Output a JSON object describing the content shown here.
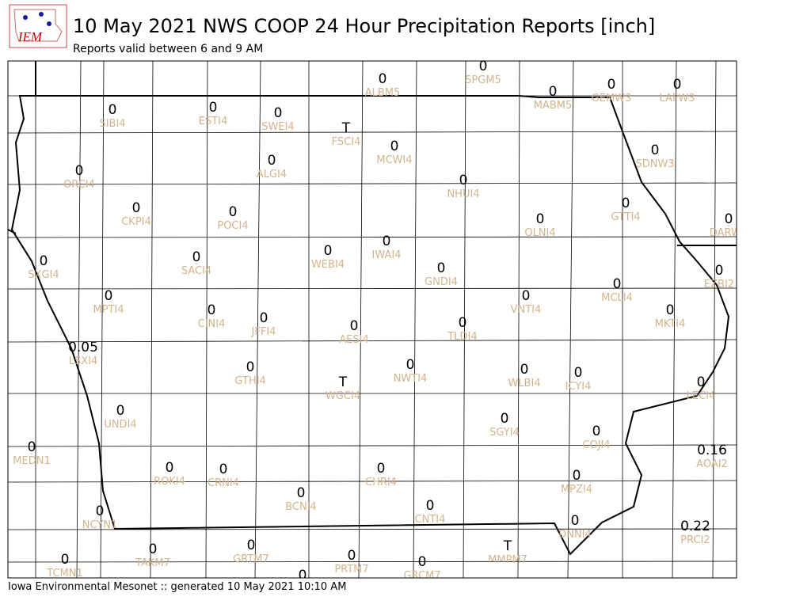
{
  "logo": "IEM",
  "title": "10 May 2021 NWS COOP 24 Hour Precipitation Reports [inch]",
  "subtitle": "Reports valid between 6 and 9 AM",
  "footer": "Iowa Environmental Mesonet :: generated 10 May 2021 10:10 AM",
  "stations": [
    {
      "id": "ALBM5",
      "value": "0"
    },
    {
      "id": "SPGM5",
      "value": "0"
    },
    {
      "id": "MABM5",
      "value": "0"
    },
    {
      "id": "GEMW3",
      "value": "0"
    },
    {
      "id": "LAFW3",
      "value": "0"
    },
    {
      "id": "SIBI4",
      "value": "0"
    },
    {
      "id": "ESTI4",
      "value": "0"
    },
    {
      "id": "SWEI4",
      "value": "0"
    },
    {
      "id": "FSCI4",
      "value": "T"
    },
    {
      "id": "MCWI4",
      "value": "0"
    },
    {
      "id": "SDNW3",
      "value": "0"
    },
    {
      "id": "ALGI4",
      "value": "0"
    },
    {
      "id": "ORCI4",
      "value": "0"
    },
    {
      "id": "NHUI4",
      "value": "0"
    },
    {
      "id": "CKPI4",
      "value": "0"
    },
    {
      "id": "POCI4",
      "value": "0"
    },
    {
      "id": "GTTI4",
      "value": "0"
    },
    {
      "id": "OLNI4",
      "value": "0"
    },
    {
      "id": "DARW3",
      "value": "0"
    },
    {
      "id": "SXGI4",
      "value": "0"
    },
    {
      "id": "SACI4",
      "value": "0"
    },
    {
      "id": "WEBI4",
      "value": "0"
    },
    {
      "id": "IWAI4",
      "value": "0"
    },
    {
      "id": "GNDI4",
      "value": "0"
    },
    {
      "id": "EZBI2",
      "value": "0"
    },
    {
      "id": "MCLI4",
      "value": "0"
    },
    {
      "id": "MPTI4",
      "value": "0"
    },
    {
      "id": "VNTI4",
      "value": "0"
    },
    {
      "id": "CINI4",
      "value": "0"
    },
    {
      "id": "JFFI4",
      "value": "0"
    },
    {
      "id": "MKTI4",
      "value": "0"
    },
    {
      "id": "AESI4",
      "value": "0"
    },
    {
      "id": "TLDI4",
      "value": "0"
    },
    {
      "id": "LSXI4",
      "value": "0.05"
    },
    {
      "id": "GTHI4",
      "value": "0"
    },
    {
      "id": "NWTI4",
      "value": "0"
    },
    {
      "id": "WLBI4",
      "value": "0"
    },
    {
      "id": "ICYI4",
      "value": "0"
    },
    {
      "id": "LECI4",
      "value": "0"
    },
    {
      "id": "WGCI4",
      "value": "T"
    },
    {
      "id": "UNDI4",
      "value": "0"
    },
    {
      "id": "SGYI4",
      "value": "0"
    },
    {
      "id": "COJI4",
      "value": "0"
    },
    {
      "id": "MEDN1",
      "value": "0"
    },
    {
      "id": "AOAI2",
      "value": "0.16"
    },
    {
      "id": "ROKI4",
      "value": "0"
    },
    {
      "id": "CRNI4",
      "value": "0"
    },
    {
      "id": "CHRI4",
      "value": "0"
    },
    {
      "id": "MPZI4",
      "value": "0"
    },
    {
      "id": "BCNI4",
      "value": "0"
    },
    {
      "id": "CNTI4",
      "value": "0"
    },
    {
      "id": "NCYN1",
      "value": "0"
    },
    {
      "id": "DNNI4",
      "value": "0"
    },
    {
      "id": "PRCI2",
      "value": "0.22"
    },
    {
      "id": "TAKM7",
      "value": "0"
    },
    {
      "id": "GRTM7",
      "value": "0"
    },
    {
      "id": "MMPM7",
      "value": "T"
    },
    {
      "id": "PRTM7",
      "value": "0"
    },
    {
      "id": "GRCM7",
      "value": "0"
    },
    {
      "id": "TCMN1",
      "value": "0"
    },
    {
      "value": "0"
    }
  ]
}
